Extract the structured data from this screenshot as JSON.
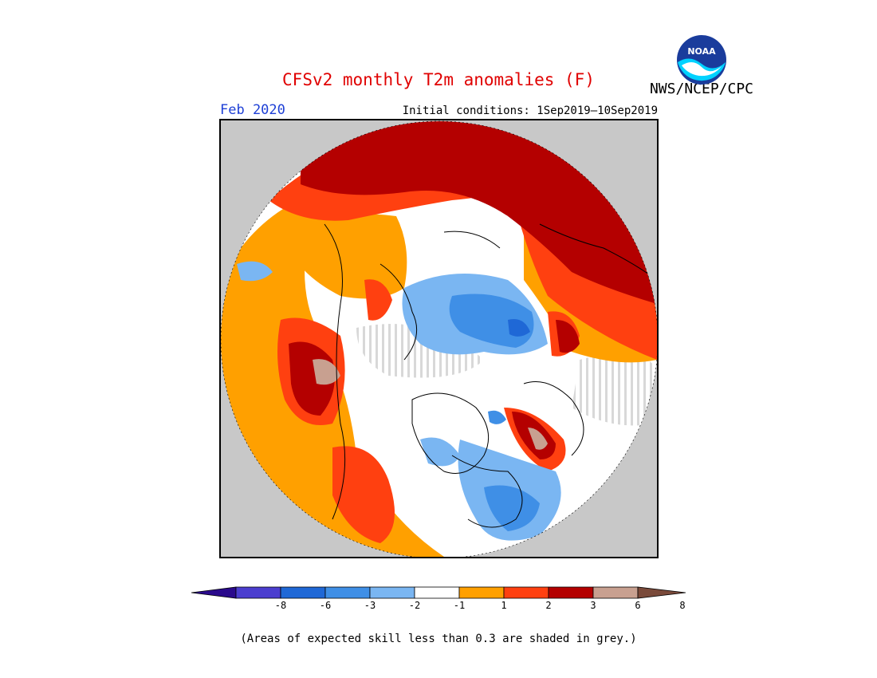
{
  "header": {
    "title": "CFSv2 monthly T2m anomalies (F)",
    "org": "NWS/NCEP/CPC",
    "logo_text": "NOAA",
    "period": "Feb 2020",
    "initial_conditions": "Initial conditions: 1Sep2019–10Sep2019"
  },
  "legend": {
    "colors": [
      "#2a0a8c",
      "#4b3ecf",
      "#1f68d6",
      "#3f8fe6",
      "#7ab6f2",
      "#ffffff",
      "#ffa000",
      "#ff4010",
      "#b40000",
      "#c8a090",
      "#7a4a3a"
    ],
    "tick_labels": [
      "-8",
      "-6",
      "-3",
      "-2",
      "-1",
      "1",
      "2",
      "3",
      "6",
      "8"
    ]
  },
  "colors": {
    "below_skill": "#c8c8c8",
    "coastline": "#000000"
  },
  "footnote": "(Areas of expected skill less than 0.3 are shaded in grey.)"
}
